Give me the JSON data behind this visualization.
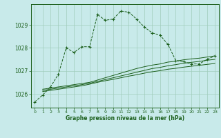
{
  "title": "Graphe pression niveau de la mer (hPa)",
  "background_color": "#c8eaea",
  "grid_color": "#a0ccbb",
  "line_color": "#1a5e1a",
  "xlim": [
    -0.5,
    23.5
  ],
  "ylim": [
    1025.4,
    1029.9
  ],
  "yticks": [
    1026,
    1027,
    1028,
    1029
  ],
  "xticks": [
    0,
    1,
    2,
    3,
    4,
    5,
    6,
    7,
    8,
    9,
    10,
    11,
    12,
    13,
    14,
    15,
    16,
    17,
    18,
    19,
    20,
    21,
    22,
    23
  ],
  "series1_x": [
    0,
    1,
    2,
    3,
    4,
    5,
    6,
    7,
    8,
    9,
    10,
    11,
    12,
    13,
    14,
    15,
    16,
    17,
    18,
    19,
    20,
    21,
    22,
    23
  ],
  "series1_y": [
    1025.65,
    1025.95,
    1026.3,
    1026.85,
    1028.0,
    1027.8,
    1028.05,
    1028.05,
    1029.45,
    1029.2,
    1029.25,
    1029.6,
    1029.55,
    1029.25,
    1028.9,
    1028.65,
    1028.55,
    1028.15,
    1027.45,
    1027.4,
    1027.3,
    1027.3,
    1027.5,
    1027.65
  ],
  "series2_x": [
    1,
    2,
    3,
    4,
    5,
    6,
    7,
    8,
    9,
    10,
    11,
    12,
    13,
    14,
    15,
    16,
    17,
    18,
    19,
    20,
    21,
    22,
    23
  ],
  "series2_y": [
    1026.2,
    1026.25,
    1026.3,
    1026.35,
    1026.4,
    1026.45,
    1026.5,
    1026.6,
    1026.7,
    1026.8,
    1026.9,
    1027.0,
    1027.1,
    1027.18,
    1027.25,
    1027.3,
    1027.38,
    1027.42,
    1027.48,
    1027.52,
    1027.55,
    1027.6,
    1027.65
  ],
  "series3_x": [
    1,
    2,
    3,
    4,
    5,
    6,
    7,
    8,
    9,
    10,
    11,
    12,
    13,
    14,
    15,
    16,
    17,
    18,
    19,
    20,
    21,
    22,
    23
  ],
  "series3_y": [
    1026.15,
    1026.2,
    1026.25,
    1026.3,
    1026.35,
    1026.4,
    1026.46,
    1026.54,
    1026.62,
    1026.7,
    1026.78,
    1026.86,
    1026.94,
    1027.02,
    1027.1,
    1027.15,
    1027.22,
    1027.27,
    1027.33,
    1027.37,
    1027.41,
    1027.46,
    1027.5
  ],
  "series4_x": [
    1,
    2,
    3,
    4,
    5,
    6,
    7,
    8,
    9,
    10,
    11,
    12,
    13,
    14,
    15,
    16,
    17,
    18,
    19,
    20,
    21,
    22,
    23
  ],
  "series4_y": [
    1026.1,
    1026.15,
    1026.2,
    1026.25,
    1026.3,
    1026.35,
    1026.42,
    1026.5,
    1026.57,
    1026.63,
    1026.7,
    1026.77,
    1026.83,
    1026.9,
    1026.96,
    1027.01,
    1027.07,
    1027.11,
    1027.16,
    1027.2,
    1027.24,
    1027.28,
    1027.32
  ]
}
